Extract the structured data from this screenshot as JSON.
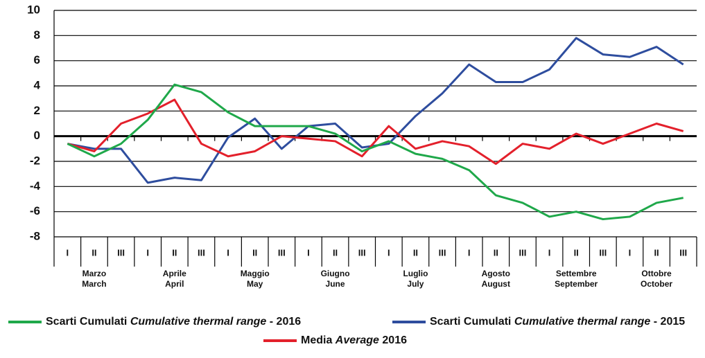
{
  "chart_data": {
    "type": "line",
    "categories": [
      "I",
      "II",
      "III",
      "I",
      "II",
      "III",
      "I",
      "II",
      "III",
      "I",
      "II",
      "III",
      "I",
      "II",
      "III",
      "I",
      "II",
      "III",
      "I",
      "II",
      "III",
      "I",
      "II",
      "III"
    ],
    "months": [
      {
        "it": "Marzo",
        "en": "March"
      },
      {
        "it": "Aprile",
        "en": "April"
      },
      {
        "it": "Maggio",
        "en": "May"
      },
      {
        "it": "Giugno",
        "en": "June"
      },
      {
        "it": "Luglio",
        "en": "July"
      },
      {
        "it": "Agosto",
        "en": "August"
      },
      {
        "it": "Settembre",
        "en": "September"
      },
      {
        "it": "Ottobre",
        "en": "October"
      }
    ],
    "ylim": [
      -8,
      10
    ],
    "yticks": [
      -8,
      -6,
      -4,
      -2,
      0,
      2,
      4,
      6,
      8,
      10
    ],
    "grid": true,
    "series": [
      {
        "name": [
          "Scarti Cumulati",
          "Cumulative thermal range",
          "- 2016"
        ],
        "color": "#1fa84a",
        "values": [
          -0.6,
          -1.6,
          -0.6,
          1.3,
          4.1,
          3.5,
          1.9,
          0.8,
          0.8,
          0.8,
          0.2,
          -1.2,
          -0.4,
          -1.4,
          -1.8,
          -2.7,
          -4.7,
          -5.3,
          -6.4,
          -6.0,
          -6.6,
          -6.4,
          -5.3,
          -4.9
        ]
      },
      {
        "name": [
          "Scarti Cumulati",
          "Cumulative thermal range",
          "- 2015"
        ],
        "color": "#2e4d9e",
        "values": [
          -0.6,
          -1.0,
          -1.0,
          -3.7,
          -3.3,
          -3.5,
          -0.1,
          1.4,
          -1.0,
          0.8,
          1.0,
          -0.9,
          -0.6,
          1.6,
          3.4,
          5.7,
          4.3,
          4.3,
          5.3,
          7.8,
          6.5,
          6.3,
          7.1,
          5.7
        ]
      },
      {
        "name": [
          "Media",
          "Average",
          "2016"
        ],
        "color": "#e3202b",
        "values": [
          -0.6,
          -1.2,
          1.0,
          1.8,
          2.9,
          -0.6,
          -1.6,
          -1.2,
          0.0,
          -0.2,
          -0.4,
          -1.6,
          0.8,
          -1.0,
          -0.4,
          -0.8,
          -2.2,
          -0.6,
          -1.0,
          0.2,
          -0.6,
          0.2,
          1.0,
          0.4
        ]
      }
    ]
  }
}
